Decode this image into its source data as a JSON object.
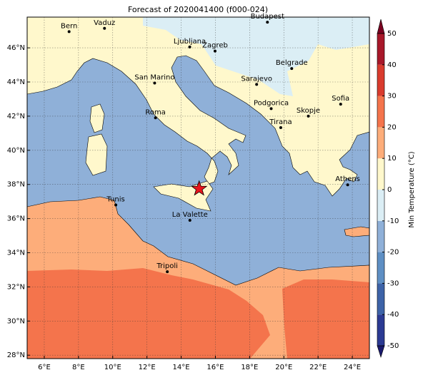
{
  "title": "Forecast of 2020041400 (f000-024)",
  "lonlim": [
    5,
    25
  ],
  "latlim": [
    27.8,
    47.8
  ],
  "lonticks": [
    {
      "value": 6,
      "label": "6°E"
    },
    {
      "value": 8,
      "label": "8°E"
    },
    {
      "value": 10,
      "label": "10°E"
    },
    {
      "value": 12,
      "label": "12°E"
    },
    {
      "value": 14,
      "label": "14°E"
    },
    {
      "value": 16,
      "label": "16°E"
    },
    {
      "value": 18,
      "label": "18°E"
    },
    {
      "value": 20,
      "label": "20°E"
    },
    {
      "value": 22,
      "label": "22°E"
    },
    {
      "value": 24,
      "label": "24°E"
    }
  ],
  "latticks": [
    {
      "value": 28,
      "label": "28°N"
    },
    {
      "value": 30,
      "label": "30°N"
    },
    {
      "value": 32,
      "label": "32°N"
    },
    {
      "value": 34,
      "label": "34°N"
    },
    {
      "value": 36,
      "label": "36°N"
    },
    {
      "value": 38,
      "label": "38°N"
    },
    {
      "value": 40,
      "label": "40°N"
    },
    {
      "value": 42,
      "label": "42°N"
    },
    {
      "value": 44,
      "label": "44°N"
    },
    {
      "value": 46,
      "label": "46°N"
    }
  ],
  "grid": true,
  "cities": [
    {
      "name": "Bern",
      "lon": 7.45,
      "lat": 46.95
    },
    {
      "name": "Vaduz",
      "lon": 9.52,
      "lat": 47.14
    },
    {
      "name": "Budapest",
      "lon": 19.04,
      "lat": 47.5
    },
    {
      "name": "Ljubljana",
      "lon": 14.5,
      "lat": 46.05
    },
    {
      "name": "Zagreb",
      "lon": 15.98,
      "lat": 45.81
    },
    {
      "name": "Belgrade",
      "lon": 20.46,
      "lat": 44.79
    },
    {
      "name": "San Marino",
      "lon": 12.45,
      "lat": 43.94
    },
    {
      "name": "Sarajevo",
      "lon": 18.41,
      "lat": 43.86
    },
    {
      "name": "Sofia",
      "lon": 23.32,
      "lat": 42.7
    },
    {
      "name": "Podgorica",
      "lon": 19.26,
      "lat": 42.44
    },
    {
      "name": "Skopje",
      "lon": 21.43,
      "lat": 42.0
    },
    {
      "name": "Roma",
      "lon": 12.5,
      "lat": 41.9
    },
    {
      "name": "Tirana",
      "lon": 19.82,
      "lat": 41.33
    },
    {
      "name": "Athens",
      "lon": 23.73,
      "lat": 37.98
    },
    {
      "name": "Tunis",
      "lon": 10.18,
      "lat": 36.8
    },
    {
      "name": "La Valette",
      "lon": 14.51,
      "lat": 35.9
    },
    {
      "name": "Tripoli",
      "lon": 13.19,
      "lat": 32.89
    }
  ],
  "marker": {
    "lon": 15.05,
    "lat": 37.75,
    "color": "#e8141c"
  },
  "colorbar": {
    "label": "Min Temperature (°C)",
    "ticks": [
      -50,
      -40,
      -30,
      -20,
      -10,
      0,
      10,
      20,
      30,
      40,
      50
    ],
    "colors": [
      "#2b3a93",
      "#3d63a8",
      "#5e8fc4",
      "#8fb0d8",
      "#dbeef5",
      "#fff8cc",
      "#fdad7a",
      "#f4744c",
      "#d93b2e",
      "#a8182a"
    ],
    "under": "#1a1a6e",
    "over": "#7a0020"
  }
}
